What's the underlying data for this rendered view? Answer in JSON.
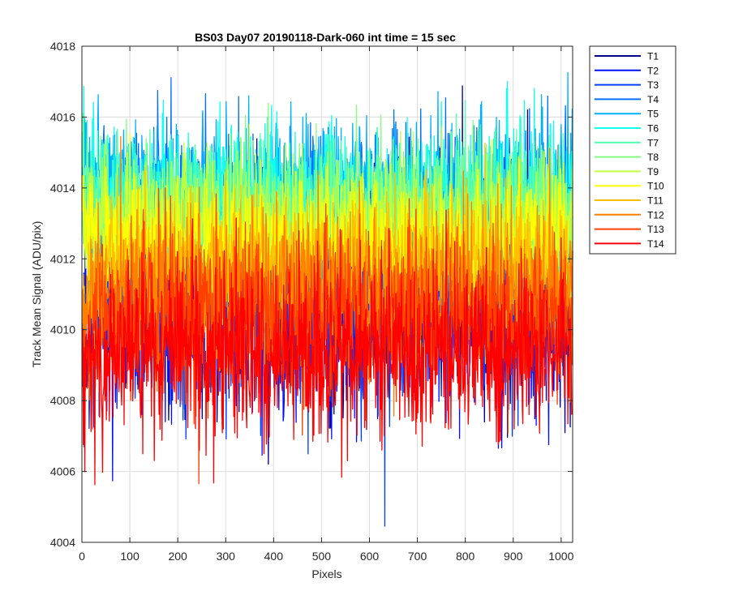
{
  "chart_data": {
    "type": "line",
    "title": "BS03 Day07 20190118-Dark-060 int time = 15 sec",
    "xlabel": "Pixels",
    "ylabel": "Track Mean Signal (ADU/pix)",
    "xlim": [
      0,
      1024
    ],
    "ylim": [
      4004,
      4018
    ],
    "xticks": [
      0,
      100,
      200,
      300,
      400,
      500,
      600,
      700,
      800,
      900,
      1000
    ],
    "yticks": [
      4004,
      4006,
      4008,
      4010,
      4012,
      4014,
      4016,
      4018
    ],
    "grid": true,
    "legend_position": "outside-top-right",
    "n_points": 1024,
    "series": [
      {
        "name": "T1",
        "color": "#00008F",
        "mean": 4011.1,
        "noise": 1.6
      },
      {
        "name": "T2",
        "color": "#0010FF",
        "mean": 4011.0,
        "noise": 1.6
      },
      {
        "name": "T3",
        "color": "#0040FF",
        "mean": 4011.2,
        "noise": 1.6
      },
      {
        "name": "T4",
        "color": "#0070FF",
        "mean": 4013.4,
        "noise": 1.1
      },
      {
        "name": "T5",
        "color": "#00B0FF",
        "mean": 4013.9,
        "noise": 1.0
      },
      {
        "name": "T6",
        "color": "#10FFEF",
        "mean": 4013.7,
        "noise": 1.0
      },
      {
        "name": "T7",
        "color": "#50FFAF",
        "mean": 4013.4,
        "noise": 1.0
      },
      {
        "name": "T8",
        "color": "#80FF80",
        "mean": 4013.2,
        "noise": 1.0
      },
      {
        "name": "T9",
        "color": "#BFFF40",
        "mean": 4012.8,
        "noise": 1.0
      },
      {
        "name": "T10",
        "color": "#FFFF00",
        "mean": 4012.4,
        "noise": 1.0
      },
      {
        "name": "T11",
        "color": "#FFC000",
        "mean": 4011.8,
        "noise": 1.0
      },
      {
        "name": "T12",
        "color": "#FF8000",
        "mean": 4011.1,
        "noise": 1.1
      },
      {
        "name": "T13",
        "color": "#FF4000",
        "mean": 4010.4,
        "noise": 1.1
      },
      {
        "name": "T14",
        "color": "#FF0000",
        "mean": 4009.4,
        "noise": 1.2
      }
    ]
  }
}
